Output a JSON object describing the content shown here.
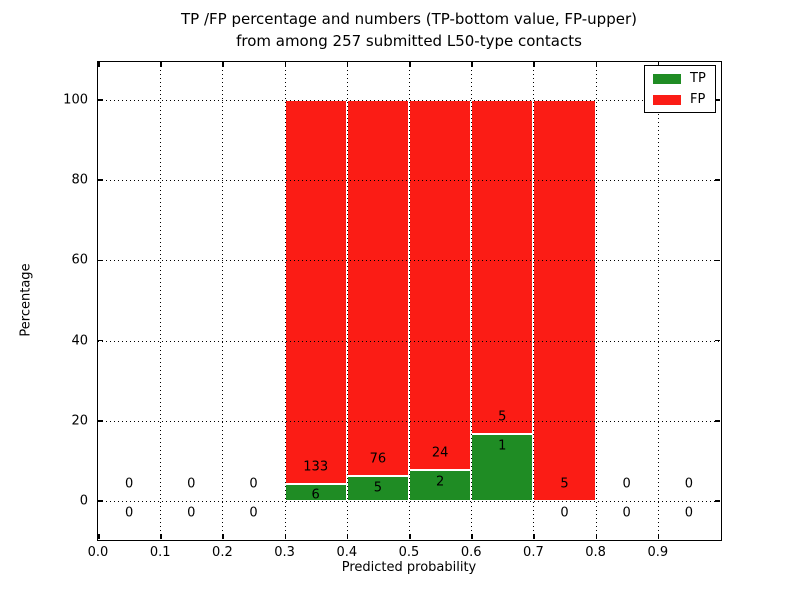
{
  "chart_data": {
    "type": "bar",
    "stacked": true,
    "normalized": "percent",
    "title_lines": [
      "TP /FP percentage and numbers (TP-bottom value, FP-upper)",
      "from among 257 submitted L50-type contacts"
    ],
    "total_contacts": 257,
    "xlabel": "Predicted probability",
    "ylabel": "Percentage",
    "xlim": [
      0.0,
      1.0
    ],
    "ylim": [
      -9.5,
      109.5
    ],
    "xtick_labels": [
      "0.0",
      "0.1",
      "0.2",
      "0.3",
      "0.4",
      "0.5",
      "0.6",
      "0.7",
      "0.8",
      "0.9"
    ],
    "xtick_values": [
      0.0,
      0.1,
      0.2,
      0.3,
      0.4,
      0.5,
      0.6,
      0.7,
      0.8,
      0.9
    ],
    "ytick_values": [
      0,
      20,
      40,
      60,
      80,
      100
    ],
    "grid": "dotted, drawn over bars",
    "bins": [
      {
        "range": [
          0.0,
          0.1
        ],
        "tp": 0,
        "fp": 0,
        "tp_percent": 0,
        "fp_percent": 0
      },
      {
        "range": [
          0.1,
          0.2
        ],
        "tp": 0,
        "fp": 0,
        "tp_percent": 0,
        "fp_percent": 0
      },
      {
        "range": [
          0.2,
          0.3
        ],
        "tp": 0,
        "fp": 0,
        "tp_percent": 0,
        "fp_percent": 0
      },
      {
        "range": [
          0.3,
          0.4
        ],
        "tp": 6,
        "fp": 133,
        "tp_percent": 4.32,
        "fp_percent": 95.68
      },
      {
        "range": [
          0.4,
          0.5
        ],
        "tp": 5,
        "fp": 76,
        "tp_percent": 6.17,
        "fp_percent": 93.83
      },
      {
        "range": [
          0.5,
          0.6
        ],
        "tp": 2,
        "fp": 24,
        "tp_percent": 7.69,
        "fp_percent": 92.31
      },
      {
        "range": [
          0.6,
          0.7
        ],
        "tp": 1,
        "fp": 5,
        "tp_percent": 16.67,
        "fp_percent": 83.33
      },
      {
        "range": [
          0.7,
          0.8
        ],
        "tp": 0,
        "fp": 5,
        "tp_percent": 0,
        "fp_percent": 100
      },
      {
        "range": [
          0.8,
          0.9
        ],
        "tp": 0,
        "fp": 0,
        "tp_percent": 0,
        "fp_percent": 0
      },
      {
        "range": [
          0.9,
          1.0
        ],
        "tp": 0,
        "fp": 0,
        "tp_percent": 0,
        "fp_percent": 0
      }
    ],
    "series": [
      {
        "name": "TP",
        "color": "#1f8c24",
        "values": [
          0,
          0,
          0,
          6,
          5,
          2,
          1,
          0,
          0,
          0
        ]
      },
      {
        "name": "FP",
        "color": "#fb1c15",
        "values": [
          0,
          0,
          0,
          133,
          76,
          24,
          5,
          5,
          0,
          0
        ]
      }
    ],
    "legend": {
      "position": "upper right",
      "entries": [
        {
          "label": "TP",
          "color": "#1f8c24"
        },
        {
          "label": "FP",
          "color": "#fb1c15"
        }
      ]
    },
    "colors": {
      "tp": "#1f8c24",
      "fp": "#fb1c15",
      "background": "#ffffff",
      "text": "#000000",
      "bar_edge": "#ffffff"
    }
  }
}
